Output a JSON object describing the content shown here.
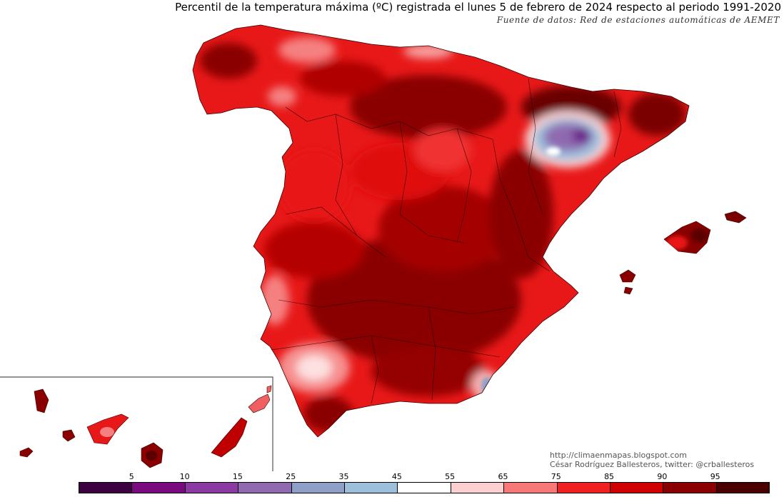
{
  "header": {
    "title": "Percentil de la temperatura máxima (ºC) registrada el lunes 5 de febrero de 2024 respecto al periodo 1991-2020",
    "source": "Fuente de datos: Red de estaciones automáticas de AEMET"
  },
  "credits": {
    "url": "http://climaenmapas.blogspot.com",
    "author": "César Rodríguez Ballesteros, twitter: @crballesteros"
  },
  "legend": {
    "ticks": [
      "5",
      "10",
      "15",
      "25",
      "35",
      "45",
      "55",
      "65",
      "75",
      "85",
      "90",
      "95"
    ],
    "colors": [
      "#3d0040",
      "#7a0a80",
      "#8a3aa0",
      "#8f6ab0",
      "#8ea0c8",
      "#9cc0dc",
      "#ffffff",
      "#fcd0d0",
      "#f87878",
      "#f02020",
      "#d00000",
      "#8a0000",
      "#4a0000"
    ]
  },
  "map": {
    "palette": {
      "sea": "#ffffff",
      "p95plus": "#5a0000",
      "p95": "#8a0000",
      "p90": "#d00000",
      "p85": "#f02020",
      "p75": "#f87878",
      "p65": "#fcd0d0",
      "p55": "#ffffff",
      "p45": "#9cc0dc",
      "p35": "#8ea0c8",
      "p25": "#8f6ab0",
      "p15": "#7a0a80"
    }
  }
}
